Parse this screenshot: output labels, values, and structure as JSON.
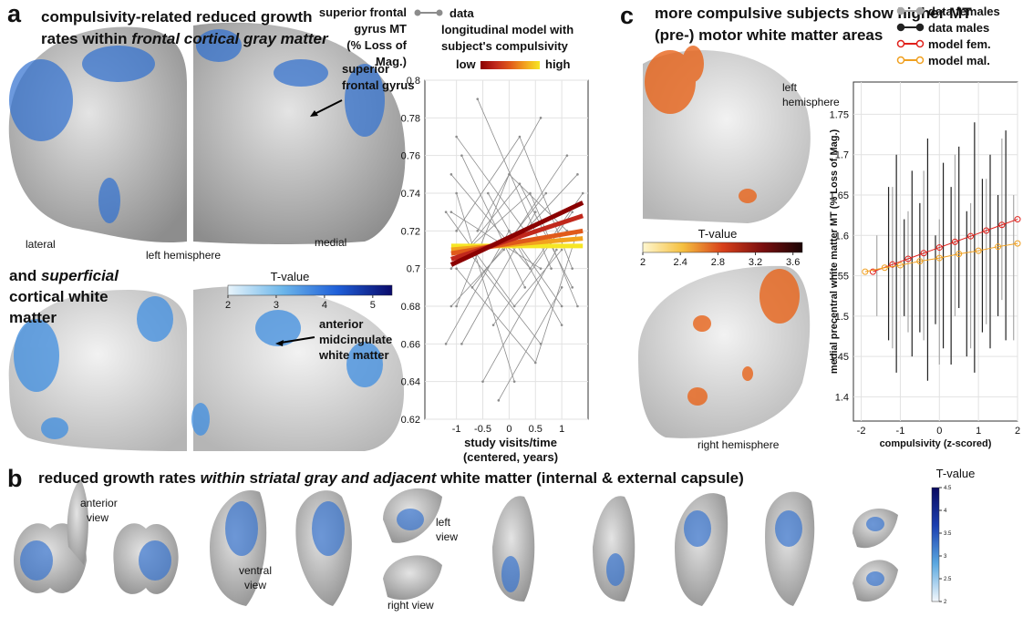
{
  "panel_a": {
    "label": "a",
    "title": [
      "compulsivity-related reduced growth",
      "rates within ",
      "frontal cortical gray matter"
    ],
    "sfg": [
      "superior",
      "frontal gyrus"
    ],
    "lateral": "lateral",
    "hemisphere": "left hemisphere",
    "medial": "medial",
    "subtitle": [
      "and ",
      "superficial",
      "cortical white",
      "matter"
    ],
    "amcc": [
      "anterior",
      "midcingulate",
      "white matter"
    ],
    "colorbar": {
      "title": "T-value",
      "lim": [
        2,
        5.4
      ],
      "ticks": [
        2,
        3,
        4,
        5
      ],
      "colors": [
        "#e8f4fb",
        "#6cb6ea",
        "#1f5fd8",
        "#0a0a6a"
      ]
    }
  },
  "chart_data": [
    {
      "type": "line",
      "ylabel": [
        "superior frontal",
        "gyrus MT",
        "(% Loss of",
        "Mag.)"
      ],
      "xlabel": [
        "study visits/time",
        "(centered, years)"
      ],
      "xlim": [
        -1.6,
        1.5
      ],
      "ylim": [
        0.62,
        0.8
      ],
      "xticks": [
        -1,
        -0.5,
        0,
        0.5,
        1
      ],
      "yticks": [
        0.62,
        0.64,
        0.66,
        0.68,
        0.7,
        0.72,
        0.74,
        0.76,
        0.78,
        0.8
      ],
      "grid": true,
      "data": {
        "name": "data",
        "color": "#8c8c8c",
        "lines": [
          {
            "x": [
              -1.1,
              0.2,
              1.2
            ],
            "values": [
              0.7,
              0.745,
              0.69
            ]
          },
          {
            "x": [
              -1,
              0.3,
              1.3
            ],
            "values": [
              0.77,
              0.72,
              0.75
            ]
          },
          {
            "x": [
              -0.9,
              0.5
            ],
            "values": [
              0.66,
              0.73
            ]
          },
          {
            "x": [
              -1.2,
              0.1,
              1
            ],
            "values": [
              0.73,
              0.68,
              0.71
            ]
          },
          {
            "x": [
              -0.6,
              0.8
            ],
            "values": [
              0.79,
              0.7
            ]
          },
          {
            "x": [
              -1,
              0,
              1.1
            ],
            "values": [
              0.68,
              0.75,
              0.72
            ]
          },
          {
            "x": [
              -0.8,
              0.6
            ],
            "values": [
              0.71,
              0.66
            ]
          },
          {
            "x": [
              -1.1,
              0.4,
              1.4
            ],
            "values": [
              0.75,
              0.7,
              0.74
            ]
          },
          {
            "x": [
              -0.5,
              0.9
            ],
            "values": [
              0.64,
              0.71
            ]
          },
          {
            "x": [
              -1,
              0.2,
              1.2
            ],
            "values": [
              0.72,
              0.77,
              0.7
            ]
          },
          {
            "x": [
              -0.7,
              0.7
            ],
            "values": [
              0.69,
              0.74
            ]
          },
          {
            "x": [
              -1.2,
              0,
              1
            ],
            "values": [
              0.66,
              0.72,
              0.68
            ]
          },
          {
            "x": [
              -0.4,
              1
            ],
            "values": [
              0.74,
              0.67
            ]
          },
          {
            "x": [
              -1,
              0.5,
              1.3
            ],
            "values": [
              0.7,
              0.65,
              0.72
            ]
          },
          {
            "x": [
              -0.9,
              0.3
            ],
            "values": [
              0.76,
              0.69
            ]
          },
          {
            "x": [
              -1.1,
              -0.1,
              1.1
            ],
            "values": [
              0.68,
              0.71,
              0.76
            ]
          },
          {
            "x": [
              -0.6,
              0.6
            ],
            "values": [
              0.72,
              0.78
            ]
          },
          {
            "x": [
              -0.3,
              1.2
            ],
            "values": [
              0.67,
              0.73
            ]
          },
          {
            "x": [
              -1,
              0.1
            ],
            "values": [
              0.74,
              0.64
            ]
          },
          {
            "x": [
              -0.8,
              0.4,
              1.3
            ],
            "values": [
              0.71,
              0.74,
              0.68
            ]
          },
          {
            "x": [
              -0.2,
              1
            ],
            "values": [
              0.63,
              0.69
            ]
          },
          {
            "x": [
              -1.1,
              0.6
            ],
            "values": [
              0.73,
              0.7
            ]
          }
        ]
      },
      "model": {
        "name": [
          "longitudinal model with",
          "subject's compulsivity"
        ],
        "low": "low",
        "high": "high",
        "lines": [
          {
            "color": "#8b0000",
            "x": [
              -1.1,
              1.4
            ],
            "values": [
              0.702,
              0.735
            ]
          },
          {
            "color": "#c0281c",
            "x": [
              -1.1,
              1.4
            ],
            "values": [
              0.705,
              0.728
            ]
          },
          {
            "color": "#e05a1a",
            "x": [
              -1.1,
              1.4
            ],
            "values": [
              0.708,
              0.72
            ]
          },
          {
            "color": "#f2a21e",
            "x": [
              -1.1,
              1.4
            ],
            "values": [
              0.71,
              0.716
            ]
          },
          {
            "color": "#f6e624",
            "x": [
              -1.1,
              1.4
            ],
            "values": [
              0.712,
              0.712
            ]
          }
        ]
      }
    },
    {
      "type": "errorbar",
      "ylabel": "medial precentral white matter MT (% Loss of Mag.)",
      "xlabel": "compulsivity (z-scored)",
      "xlim": [
        -2.2,
        2
      ],
      "ylim": [
        1.37,
        1.79
      ],
      "xticks": [
        -2,
        -1,
        0,
        1,
        2
      ],
      "yticks": [
        1.4,
        1.45,
        1.5,
        1.55,
        1.6,
        1.65,
        1.7,
        1.75
      ],
      "grid": true,
      "series": [
        {
          "name": "data females",
          "color": "#a8a8a8",
          "x": [
            -1.6,
            -1.2,
            -0.8,
            -0.4,
            0,
            0.4,
            0.8,
            1.2,
            1.6,
            1.9
          ],
          "low": [
            1.5,
            1.46,
            1.48,
            1.47,
            1.44,
            1.5,
            1.46,
            1.49,
            1.52,
            1.47
          ],
          "high": [
            1.6,
            1.66,
            1.63,
            1.68,
            1.62,
            1.7,
            1.64,
            1.67,
            1.72,
            1.65
          ]
        },
        {
          "name": "data males",
          "color": "#222222",
          "x": [
            -1.3,
            -1.1,
            -0.9,
            -0.7,
            -0.5,
            -0.3,
            -0.1,
            0.1,
            0.3,
            0.5,
            0.7,
            0.9,
            1.1,
            1.3,
            1.5,
            1.7
          ],
          "low": [
            1.47,
            1.43,
            1.5,
            1.45,
            1.48,
            1.42,
            1.49,
            1.46,
            1.44,
            1.51,
            1.45,
            1.43,
            1.48,
            1.46,
            1.5,
            1.47
          ],
          "high": [
            1.66,
            1.7,
            1.62,
            1.68,
            1.64,
            1.72,
            1.6,
            1.69,
            1.66,
            1.71,
            1.63,
            1.74,
            1.67,
            1.7,
            1.65,
            1.73
          ]
        },
        {
          "name": "model fem.",
          "color": "#e0201b",
          "x": [
            -1.7,
            -1.2,
            -0.8,
            -0.4,
            0,
            0.4,
            0.8,
            1.2,
            1.6,
            2
          ],
          "values": [
            1.555,
            1.564,
            1.571,
            1.578,
            1.585,
            1.592,
            1.599,
            1.606,
            1.613,
            1.62
          ]
        },
        {
          "name": "model mal.",
          "color": "#f0a020",
          "x": [
            -1.9,
            -1.4,
            -1,
            -0.5,
            0,
            0.5,
            1,
            1.5,
            2
          ],
          "values": [
            1.555,
            1.56,
            1.563,
            1.568,
            1.572,
            1.577,
            1.581,
            1.586,
            1.59
          ]
        }
      ]
    }
  ],
  "panel_c": {
    "label": "c",
    "title": [
      "more compulsive subjects show higher MT",
      "(pre-) motor white matter areas"
    ],
    "left": [
      "left",
      "hemisphere"
    ],
    "right": "right hemisphere",
    "colorbar": {
      "title": "T-value",
      "lim": [
        2,
        3.7
      ],
      "ticks": [
        2,
        2.4,
        2.8,
        3.2,
        3.6
      ],
      "colors": [
        "#fff7d0",
        "#f5c040",
        "#d8401a",
        "#7a0f0f",
        "#1a0505"
      ]
    }
  },
  "panel_b": {
    "label": "b",
    "title": [
      "reduced growth rates ",
      "within",
      " s",
      "triatal gray and adjacent",
      " white matter (internal & external capsule)"
    ],
    "anterior": [
      "anterior",
      "view"
    ],
    "ventral": [
      "ventral",
      "view"
    ],
    "left": [
      "left",
      "view"
    ],
    "right": "right view",
    "colorbar": {
      "title": "T-value",
      "lim": [
        2,
        4.5
      ],
      "ticks": [
        2,
        2.5,
        3,
        3.5,
        4,
        4.5
      ],
      "colors": [
        "#f4f8fc",
        "#5aa8e0",
        "#1b3fb0",
        "#0a0a60"
      ]
    }
  }
}
